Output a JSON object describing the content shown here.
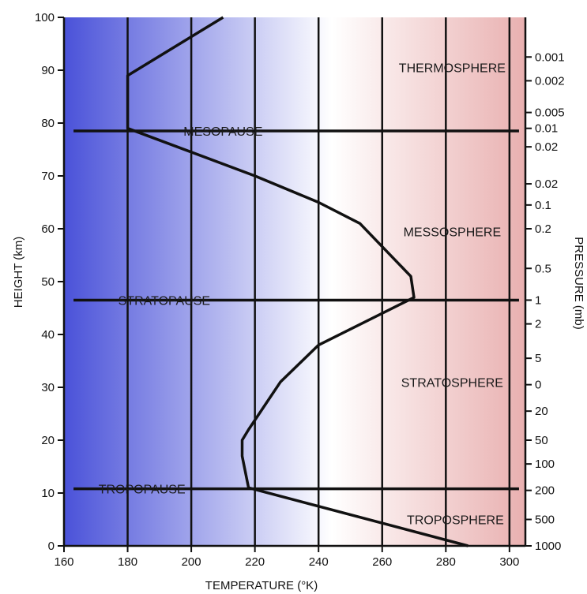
{
  "chart_data": {
    "type": "line",
    "title": "",
    "xlabel": "TEMPERATURE (°K)",
    "ylabel": "HEIGHT (km)",
    "y2label": "PRESSURE (mb)",
    "xlim": [
      160,
      305
    ],
    "ylim": [
      0,
      100
    ],
    "x_ticks": [
      "160",
      "180",
      "200",
      "220",
      "240",
      "260",
      "280",
      "300"
    ],
    "y_ticks": [
      "0",
      "10",
      "20",
      "30",
      "40",
      "50",
      "60",
      "70",
      "80",
      "90",
      "100"
    ],
    "grid_x": [
      180,
      200,
      220,
      240,
      260,
      280,
      300
    ],
    "gradient_colors": [
      "#4a52d9",
      "#ffffff",
      "#e9b0b0"
    ],
    "line_color": "#111111",
    "profile": {
      "x": [
        287,
        218,
        216,
        216,
        218,
        228,
        240,
        270,
        269,
        253,
        240,
        220,
        180,
        180,
        210
      ],
      "y": [
        0,
        11,
        17,
        20,
        22,
        31,
        38,
        47,
        51,
        61,
        65,
        70,
        79,
        89,
        100
      ]
    },
    "pauses": [
      {
        "name": "TROPOPAUSE",
        "height": 10.8,
        "x_start": 163,
        "x_end": 303,
        "label_x": 184.5
      },
      {
        "name": "STRATOPAUSE",
        "height": 46.5,
        "x_start": 163,
        "x_end": 303,
        "label_x": 191.5
      },
      {
        "name": "MESOPAUSE",
        "height": 78.5,
        "x_start": 163,
        "x_end": 303,
        "label_x": 210
      }
    ],
    "layers": [
      {
        "name": "TROPOSPHERE",
        "x": 283,
        "height": 5
      },
      {
        "name": "STRATOSPHERE",
        "x": 282,
        "height": 31
      },
      {
        "name": "MESSOSPHERE",
        "x": 282,
        "height": 59.5
      },
      {
        "name": "THERMOSPHERE",
        "x": 282,
        "height": 90.5
      }
    ],
    "pressure_ticks": [
      {
        "label": "0.001",
        "height": 92.5
      },
      {
        "label": "0.002",
        "height": 88
      },
      {
        "label": "0.005",
        "height": 82
      },
      {
        "label": "0.01",
        "height": 79
      },
      {
        "label": "0.02",
        "height": 75.5
      },
      {
        "label": "0.02",
        "height": 68.5
      },
      {
        "label": "0.1",
        "height": 64.5
      },
      {
        "label": "0.2",
        "height": 60
      },
      {
        "label": "0.5",
        "height": 52.5
      },
      {
        "label": "1",
        "height": 46.5
      },
      {
        "label": "2",
        "height": 42
      },
      {
        "label": "5",
        "height": 35.5
      },
      {
        "label": "0",
        "height": 30.5
      },
      {
        "label": "20",
        "height": 25.5
      },
      {
        "label": "50",
        "height": 20
      },
      {
        "label": "100",
        "height": 15.5
      },
      {
        "label": "200",
        "height": 10.5
      },
      {
        "label": "500",
        "height": 5
      },
      {
        "label": "1000",
        "height": 0
      }
    ]
  }
}
